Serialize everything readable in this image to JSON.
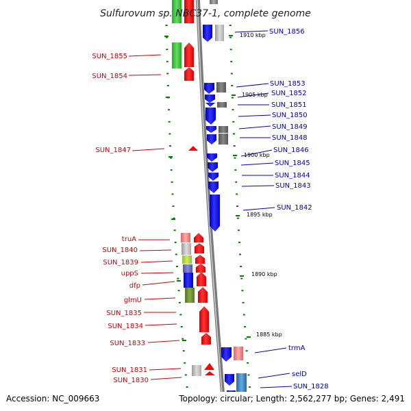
{
  "title": "Sulfurovum sp. NBC37-1, complete genome",
  "footer": {
    "accession": "Accession: NC_009663",
    "topology": "Topology: circular; Length: 2,562,277 bp; Genes: 2,491"
  },
  "kbp_labels": [
    "1910 kbp",
    "1905 kbp",
    "1900 kbp",
    "1895 kbp",
    "1890 kbp",
    "1885 kbp"
  ],
  "left_labels": [
    "SUN_1855",
    "SUN_1854",
    "SUN_1847",
    "truA",
    "SUN_1840",
    "SUN_1839",
    "uppS",
    "dfp",
    "glmU",
    "SUN_1835",
    "SUN_1834",
    "SUN_1833",
    "SUN_1831",
    "SUN_1830"
  ],
  "right_labels": [
    "SUN_1856",
    "SUN_1853",
    "SUN_1852",
    "SUN_1851",
    "SUN_1850",
    "SUN_1849",
    "SUN_1848",
    "SUN_1846",
    "SUN_1845",
    "SUN_1844",
    "SUN_1843",
    "SUN_1842",
    "trmA",
    "selD",
    "SUN_1828"
  ],
  "colors": {
    "forward_gene": "#ff0000",
    "reverse_gene": "#0000ff",
    "left_label": "#cc0000",
    "right_label": "#0000aa",
    "backbone": "#888888",
    "tick": "#008000"
  }
}
